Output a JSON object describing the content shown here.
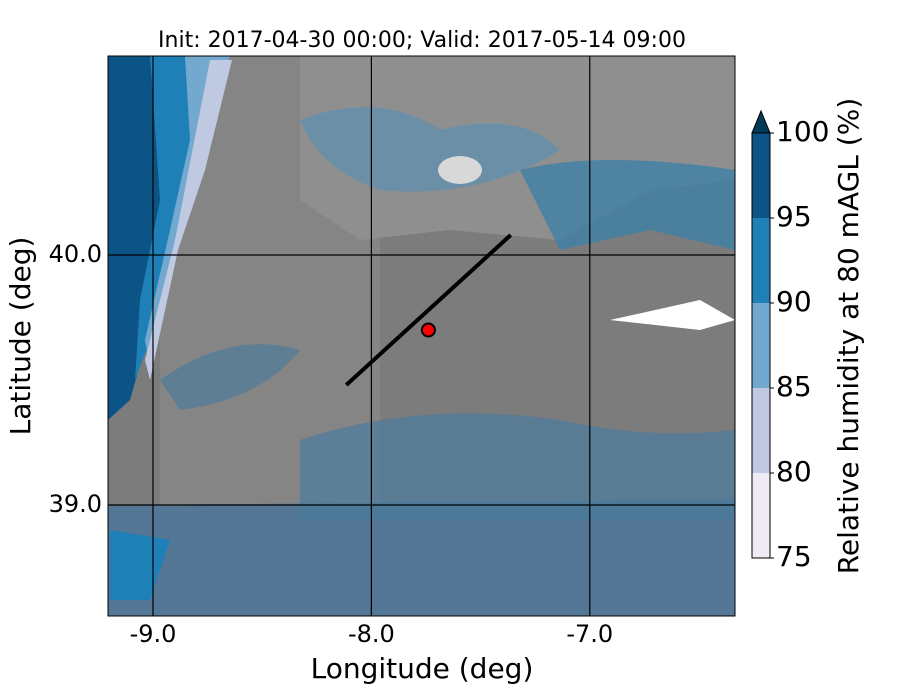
{
  "chart_data": {
    "type": "map",
    "title": "Init: 2017-04-30 00:00; Valid: 2017-05-14 09:00",
    "xlabel": "Longitude (deg)",
    "ylabel": "Latitude (deg)",
    "xlim": [
      -9.206,
      -6.335
    ],
    "ylim": [
      38.556,
      40.796
    ],
    "xticks": [
      {
        "value": -9,
        "label": "-9.0"
      },
      {
        "value": -8,
        "label": "-8.0"
      },
      {
        "value": -7,
        "label": "-7.0"
      }
    ],
    "yticks": [
      {
        "value": 39,
        "label": "39.0"
      },
      {
        "value": 40,
        "label": "40.0"
      }
    ],
    "grid": true,
    "transect": {
      "x": [
        -8.115,
        -7.362
      ],
      "y": [
        39.48,
        40.08
      ],
      "color": "#000000"
    },
    "site": {
      "x": -7.739,
      "y": 39.7,
      "color": "#ff0000"
    },
    "colorbar": {
      "label": "Relative humidity at 80 mAGL (%)",
      "ticks": [
        75,
        80,
        85,
        90,
        95,
        100
      ],
      "colors": [
        "#efeaf4",
        "#bfc9e2",
        "#73a9cf",
        "#1f80b8",
        "#0b5485"
      ],
      "extend_color": "#023858"
    }
  }
}
